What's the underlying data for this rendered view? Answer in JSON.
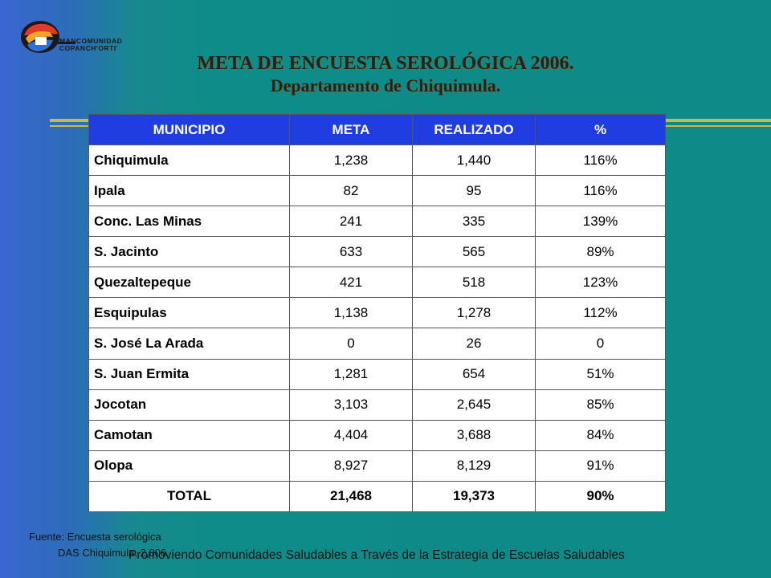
{
  "logo": {
    "line1": "MANCOMUNIDAD",
    "line2": "COPANCH'ORTI'"
  },
  "title": {
    "line1": "META DE ENCUESTA SEROLÓGICA  2006.",
    "line2": "Departamento de Chiquimula."
  },
  "table": {
    "headers": [
      "MUNICIPIO",
      "META",
      "REALIZADO",
      "%"
    ],
    "rows": [
      [
        "Chiquimula",
        "1,238",
        "1,440",
        "116%"
      ],
      [
        "Ipala",
        "82",
        "95",
        "116%"
      ],
      [
        "Conc. Las Minas",
        "241",
        "335",
        "139%"
      ],
      [
        "S. Jacinto",
        "633",
        "565",
        "89%"
      ],
      [
        "Quezaltepeque",
        "421",
        "518",
        "123%"
      ],
      [
        "Esquipulas",
        "1,138",
        "1,278",
        "112%"
      ],
      [
        "S. José La Arada",
        "0",
        "26",
        "0"
      ],
      [
        "S. Juan Ermita",
        "1,281",
        "654",
        "51%"
      ],
      [
        "Jocotan",
        "3,103",
        "2,645",
        "85%"
      ],
      [
        "Camotan",
        "4,404",
        "3,688",
        "84%"
      ],
      [
        "Olopa",
        "8,927",
        "8,129",
        "91%"
      ]
    ],
    "total": [
      "TOTAL",
      "21,468",
      "19,373",
      "90%"
    ]
  },
  "source": {
    "line1": "Fuente: Encuesta serológica",
    "line2": "DAS Chiquimula, 2,006"
  },
  "footer": "Promoviendo Comunidades Saludables a Través de la Estrategia de Escuelas Saludables",
  "colors": {
    "header_bg": "#1f3de0",
    "accent_rule": "#c9b94b",
    "background": "#0e8a88"
  }
}
